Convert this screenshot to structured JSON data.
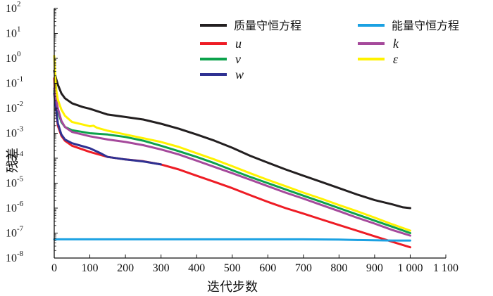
{
  "chart_data": {
    "type": "line",
    "xlabel": "迭代步数",
    "ylabel": "残差",
    "xlim": [
      0,
      1100
    ],
    "ylim_log10": [
      -8,
      2
    ],
    "y_scale": "log",
    "x_ticks": [
      0,
      100,
      200,
      300,
      400,
      500,
      600,
      700,
      800,
      900,
      1000,
      1100
    ],
    "x_tick_labels": [
      "0",
      "100",
      "200",
      "300",
      "400",
      "500",
      "600",
      "700",
      "800",
      "900",
      "1 000",
      "1 100"
    ],
    "y_ticks_exp": [
      -8,
      -7,
      -6,
      -5,
      -4,
      -3,
      -2,
      -1,
      0,
      1,
      2
    ],
    "y_tick_base": "10",
    "legend_position": "top-right",
    "series": [
      {
        "name": "质量守恒方程",
        "color": "#231f20",
        "x": [
          0,
          5,
          10,
          20,
          30,
          50,
          80,
          100,
          150,
          200,
          250,
          300,
          350,
          400,
          450,
          500,
          550,
          600,
          650,
          700,
          750,
          800,
          850,
          900,
          950,
          980,
          1000
        ],
        "y_log10": [
          -0.5,
          -0.8,
          -1.05,
          -1.4,
          -1.6,
          -1.8,
          -1.95,
          -2.02,
          -2.25,
          -2.35,
          -2.45,
          -2.62,
          -2.82,
          -3.05,
          -3.3,
          -3.58,
          -3.9,
          -4.18,
          -4.45,
          -4.7,
          -4.95,
          -5.2,
          -5.45,
          -5.68,
          -5.85,
          -5.97,
          -6.0
        ]
      },
      {
        "name": "u",
        "color": "#ee1c25",
        "x": [
          0,
          5,
          10,
          20,
          30,
          50,
          80,
          100,
          150,
          200,
          250,
          300,
          350,
          400,
          450,
          500,
          550,
          600,
          650,
          700,
          750,
          800,
          850,
          900,
          950,
          1000
        ],
        "y_log10": [
          -0.8,
          -2.0,
          -2.7,
          -3.1,
          -3.3,
          -3.5,
          -3.65,
          -3.75,
          -3.95,
          -4.05,
          -4.12,
          -4.25,
          -4.45,
          -4.7,
          -4.95,
          -5.2,
          -5.48,
          -5.75,
          -6.0,
          -6.22,
          -6.45,
          -6.68,
          -6.9,
          -7.13,
          -7.35,
          -7.57
        ]
      },
      {
        "name": "v",
        "color": "#0ca24c",
        "x": [
          0,
          5,
          10,
          20,
          30,
          50,
          80,
          100,
          150,
          200,
          250,
          300,
          350,
          400,
          450,
          500,
          550,
          600,
          650,
          700,
          750,
          800,
          850,
          900,
          950,
          1000
        ],
        "y_log10": [
          -1.3,
          -1.7,
          -2.1,
          -2.55,
          -2.75,
          -2.88,
          -2.95,
          -3.0,
          -3.05,
          -3.15,
          -3.3,
          -3.5,
          -3.72,
          -3.95,
          -4.2,
          -4.48,
          -4.75,
          -5.0,
          -5.25,
          -5.5,
          -5.75,
          -6.0,
          -6.25,
          -6.5,
          -6.75,
          -7.0
        ]
      },
      {
        "name": "w",
        "color": "#2e3192",
        "x": [
          0,
          5,
          10,
          20,
          30,
          50,
          80,
          100,
          130,
          150,
          200,
          250,
          300
        ],
        "y_log10": [
          -1.4,
          -2.0,
          -2.6,
          -3.05,
          -3.25,
          -3.4,
          -3.52,
          -3.6,
          -3.8,
          -3.95,
          -4.05,
          -4.13,
          -4.25
        ]
      },
      {
        "name": "能量守恒方程",
        "color": "#1ba1e2",
        "x": [
          0,
          100,
          200,
          300,
          400,
          500,
          600,
          700,
          800,
          850,
          900,
          950,
          1000
        ],
        "y_log10": [
          -7.25,
          -7.25,
          -7.25,
          -7.25,
          -7.25,
          -7.25,
          -7.25,
          -7.25,
          -7.26,
          -7.28,
          -7.29,
          -7.3,
          -7.3
        ]
      },
      {
        "name": "k",
        "color": "#a5499b",
        "x": [
          0,
          5,
          10,
          20,
          30,
          50,
          80,
          100,
          150,
          200,
          250,
          300,
          350,
          400,
          450,
          500,
          550,
          600,
          650,
          700,
          750,
          800,
          850,
          900,
          950,
          1000
        ],
        "y_log10": [
          -1.2,
          -1.6,
          -2.0,
          -2.5,
          -2.75,
          -2.95,
          -3.05,
          -3.12,
          -3.25,
          -3.35,
          -3.48,
          -3.65,
          -3.85,
          -4.1,
          -4.35,
          -4.6,
          -4.86,
          -5.12,
          -5.38,
          -5.62,
          -5.87,
          -6.12,
          -6.38,
          -6.62,
          -6.88,
          -7.1
        ]
      },
      {
        "name": "ε",
        "color": "#fff200",
        "x": [
          0,
          3,
          6,
          10,
          20,
          30,
          50,
          80,
          100,
          110,
          120,
          150,
          200,
          250,
          300,
          350,
          400,
          450,
          500,
          550,
          600,
          650,
          700,
          750,
          800,
          850,
          900,
          950,
          1000
        ],
        "y_log10": [
          0.1,
          -0.8,
          -1.3,
          -1.65,
          -2.05,
          -2.3,
          -2.55,
          -2.65,
          -2.72,
          -2.7,
          -2.78,
          -2.9,
          -3.05,
          -3.2,
          -3.35,
          -3.55,
          -3.8,
          -4.05,
          -4.32,
          -4.6,
          -4.87,
          -5.12,
          -5.38,
          -5.62,
          -5.88,
          -6.12,
          -6.38,
          -6.65,
          -6.9
        ]
      }
    ]
  }
}
